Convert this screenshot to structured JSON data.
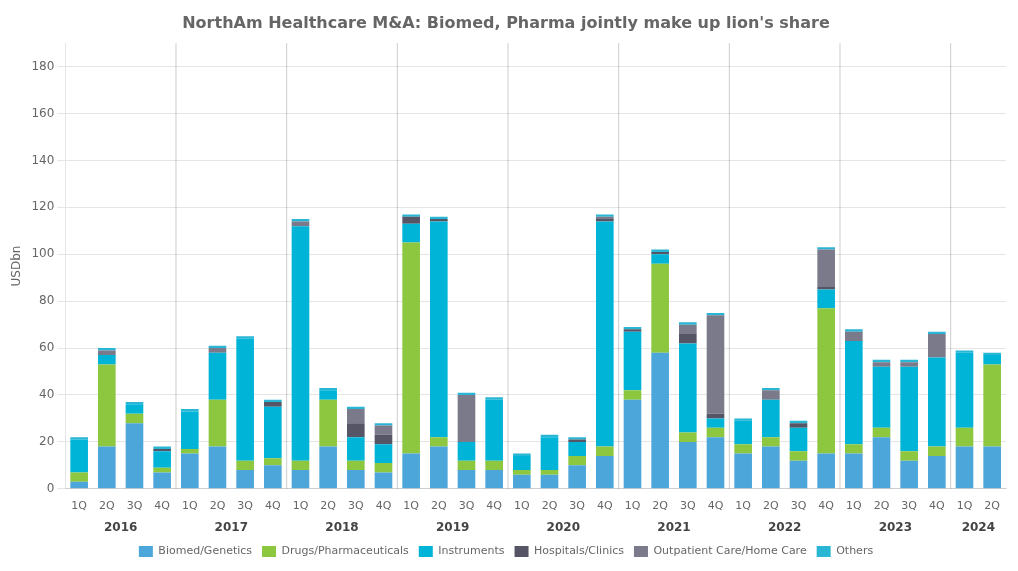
{
  "chart_data": {
    "type": "bar",
    "title": "NorthAm Healthcare M&A: Biomed, Pharma jointly make up lion's share",
    "ylabel": "USDbn",
    "categories": [
      "1Q",
      "2Q",
      "3Q",
      "4Q",
      "1Q",
      "2Q",
      "3Q",
      "4Q",
      "1Q",
      "2Q",
      "3Q",
      "4Q",
      "1Q",
      "2Q",
      "3Q",
      "4Q",
      "1Q",
      "2Q",
      "3Q",
      "4Q",
      "1Q",
      "2Q",
      "3Q",
      "4Q",
      "1Q",
      "2Q",
      "3Q",
      "4Q",
      "1Q",
      "2Q",
      "3Q",
      "4Q",
      "1Q",
      "2Q"
    ],
    "annotations": [
      {
        "text": "2016",
        "span": 4
      },
      {
        "text": "2017",
        "span": 4
      },
      {
        "text": "2018",
        "span": 4
      },
      {
        "text": "2019",
        "span": 4
      },
      {
        "text": "2020",
        "span": 4
      },
      {
        "text": "2021",
        "span": 4
      },
      {
        "text": "2022",
        "span": 4
      },
      {
        "text": "2023",
        "span": 4
      },
      {
        "text": "2024",
        "span": 2
      }
    ],
    "series": [
      {
        "name": "Biomed/Genetics",
        "color": "#4da6d9",
        "values": [
          3,
          18,
          28,
          7,
          15,
          18,
          8,
          10,
          8,
          18,
          8,
          7,
          15,
          18,
          8,
          8,
          6,
          6,
          10,
          14,
          38,
          58,
          20,
          22,
          15,
          18,
          12,
          15,
          15,
          22,
          12,
          14,
          18,
          18
        ]
      },
      {
        "name": "Drugs/Pharmaceuticals",
        "color": "#8dc63f",
        "values": [
          4,
          35,
          4,
          2,
          2,
          20,
          4,
          3,
          4,
          20,
          4,
          4,
          90,
          4,
          4,
          4,
          2,
          2,
          4,
          4,
          4,
          38,
          4,
          4,
          4,
          4,
          4,
          62,
          4,
          4,
          4,
          4,
          8,
          35
        ]
      },
      {
        "name": "Instruments",
        "color": "#00b4d8",
        "values": [
          14,
          4,
          4,
          7,
          16,
          20,
          52,
          22,
          100,
          4,
          10,
          8,
          8,
          92,
          8,
          26,
          6,
          14,
          6,
          96,
          25,
          4,
          38,
          4,
          10,
          16,
          10,
          8,
          44,
          26,
          36,
          38,
          32,
          4
        ]
      },
      {
        "name": "Hospitals/Clinics",
        "color": "#555566",
        "values": [
          0,
          0,
          0,
          1,
          0,
          0,
          0,
          2,
          0,
          0,
          6,
          4,
          3,
          1,
          0,
          0,
          0,
          0,
          1,
          1,
          1,
          1,
          4,
          2,
          0,
          0,
          2,
          1,
          0,
          0,
          0,
          0,
          0,
          0
        ]
      },
      {
        "name": "Outpatient Care/Home Care",
        "color": "#7a7a8a",
        "values": [
          0,
          2,
          0,
          0,
          0,
          2,
          0,
          0,
          2,
          0,
          6,
          4,
          0,
          0,
          20,
          0,
          0,
          0,
          0,
          1,
          0,
          0,
          4,
          42,
          0,
          4,
          0,
          16,
          4,
          2,
          2,
          10,
          0,
          0
        ]
      },
      {
        "name": "Others",
        "color": "#29b6d4",
        "values": [
          1,
          1,
          1,
          1,
          1,
          1,
          1,
          1,
          1,
          1,
          1,
          1,
          1,
          1,
          1,
          1,
          1,
          1,
          1,
          1,
          1,
          1,
          1,
          1,
          1,
          1,
          1,
          1,
          1,
          1,
          1,
          1,
          1,
          1
        ]
      }
    ],
    "ylim": [
      0,
      190
    ],
    "yticks": [
      0,
      20,
      40,
      60,
      80,
      100,
      120,
      140,
      160,
      180
    ],
    "grid": true,
    "stacked": true,
    "legend": "bottom"
  }
}
